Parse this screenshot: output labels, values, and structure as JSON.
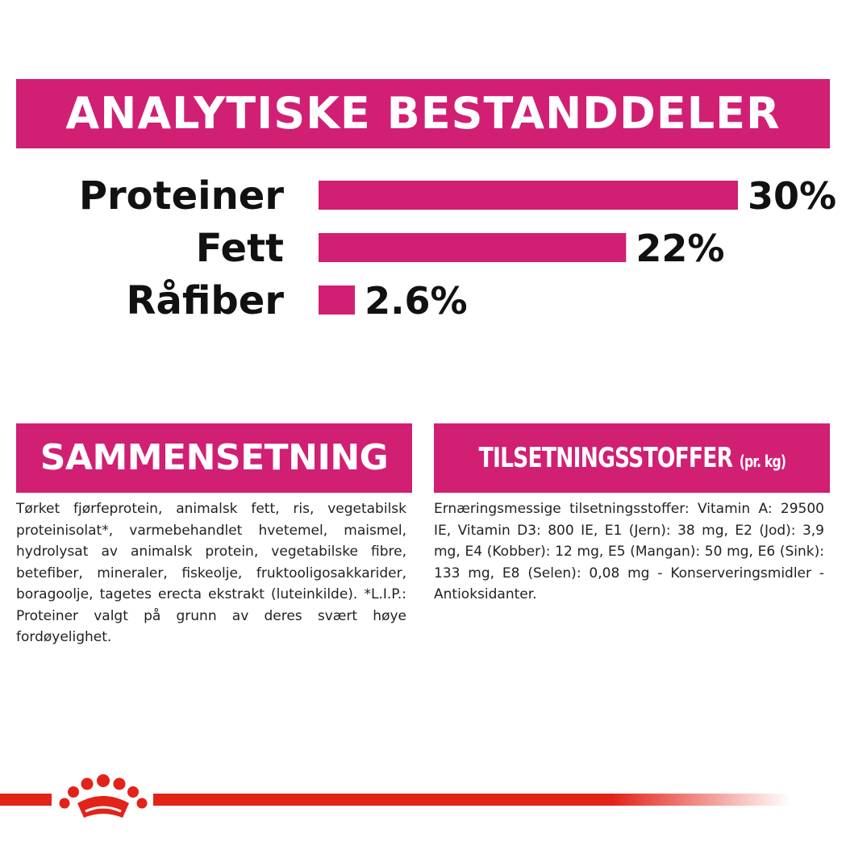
{
  "header": {
    "title": "ANALYTISKE BESTANDDELER"
  },
  "chart_data": {
    "type": "bar",
    "orientation": "horizontal",
    "categories": [
      "Proteiner",
      "Fett",
      "Råfiber"
    ],
    "values": [
      30,
      22,
      2.6
    ],
    "value_labels": [
      "30%",
      "22%",
      "2.6%"
    ],
    "unit": "%",
    "bar_color": "#d11f74",
    "grid": false
  },
  "composition": {
    "title": "SAMMENSETNING",
    "text": "Tørket fjørfeprotein, animalsk fett, ris, vegetabilsk proteinisolat*, varmebehandlet hvetemel, maismel, hydrolysat av animalsk protein, vegetabilske fibre, betefiber, mineraler, fiskeolje, fruktooligosakkarider, boragoolje, tagetes erecta ekstrakt (luteinkilde). *L.I.P.: Proteiner valgt på grunn av deres svært høye fordøyelighet."
  },
  "additives": {
    "title": "TILSETNINGSSTOFFER",
    "note": "(pr. kg)",
    "text": "Ernæringsmessige tilsetningsstoffer: Vitamin A: 29500 IE, Vitamin D3: 800 IE, E1 (Jern): 38 mg, E2 (Jod): 3,9 mg, E4 (Kobber): 12 mg, E5 (Mangan): 50 mg, E6 (Sink): 133 mg, E8 (Selen): 0,08 mg - Konserveringsmidler - Antioksidanter."
  },
  "footer": {
    "logo": "royal-canin-crown-logo",
    "line_color": "#e2231a"
  }
}
